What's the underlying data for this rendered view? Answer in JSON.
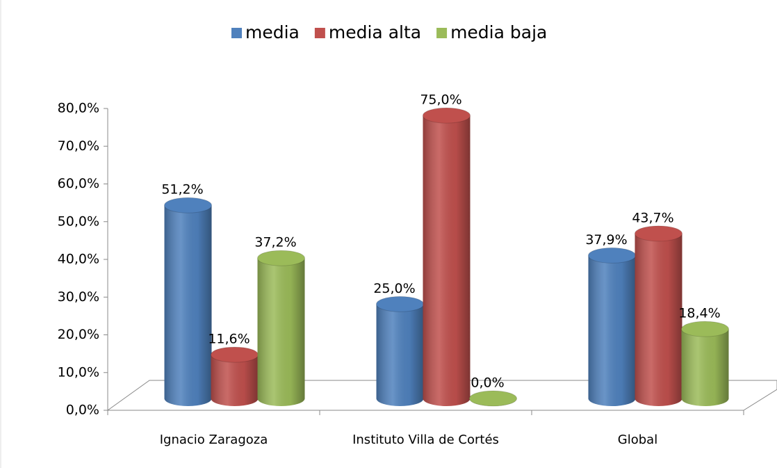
{
  "chart_data": {
    "type": "bar3d",
    "categories": [
      "Ignacio Zaragoza",
      "Instituto Villa de Cortés",
      "Global"
    ],
    "series": [
      {
        "name": "media",
        "color": "#4f81bd",
        "values": [
          51.2,
          25.0,
          37.9
        ],
        "value_labels": [
          "51,2%",
          "25,0%",
          "37,9%"
        ]
      },
      {
        "name": "media alta",
        "color": "#c0504d",
        "values": [
          11.6,
          75.0,
          43.7
        ],
        "value_labels": [
          "11,6%",
          "75,0%",
          "43,7%"
        ]
      },
      {
        "name": "media baja",
        "color": "#9bbb59",
        "values": [
          37.2,
          0.0,
          18.4
        ],
        "value_labels": [
          "37,2%",
          "0,0%",
          "18,4%"
        ]
      }
    ],
    "ylim": [
      0,
      80
    ],
    "yticks": [
      {
        "value": 0,
        "label": "0,0%"
      },
      {
        "value": 10,
        "label": "10,0%"
      },
      {
        "value": 20,
        "label": "20,0%"
      },
      {
        "value": 30,
        "label": "30,0%"
      },
      {
        "value": 40,
        "label": "40,0%"
      },
      {
        "value": 50,
        "label": "50,0%"
      },
      {
        "value": 60,
        "label": "60,0%"
      },
      {
        "value": 70,
        "label": "70,0%"
      },
      {
        "value": 80,
        "label": "80,0%"
      }
    ],
    "legend": "top"
  }
}
